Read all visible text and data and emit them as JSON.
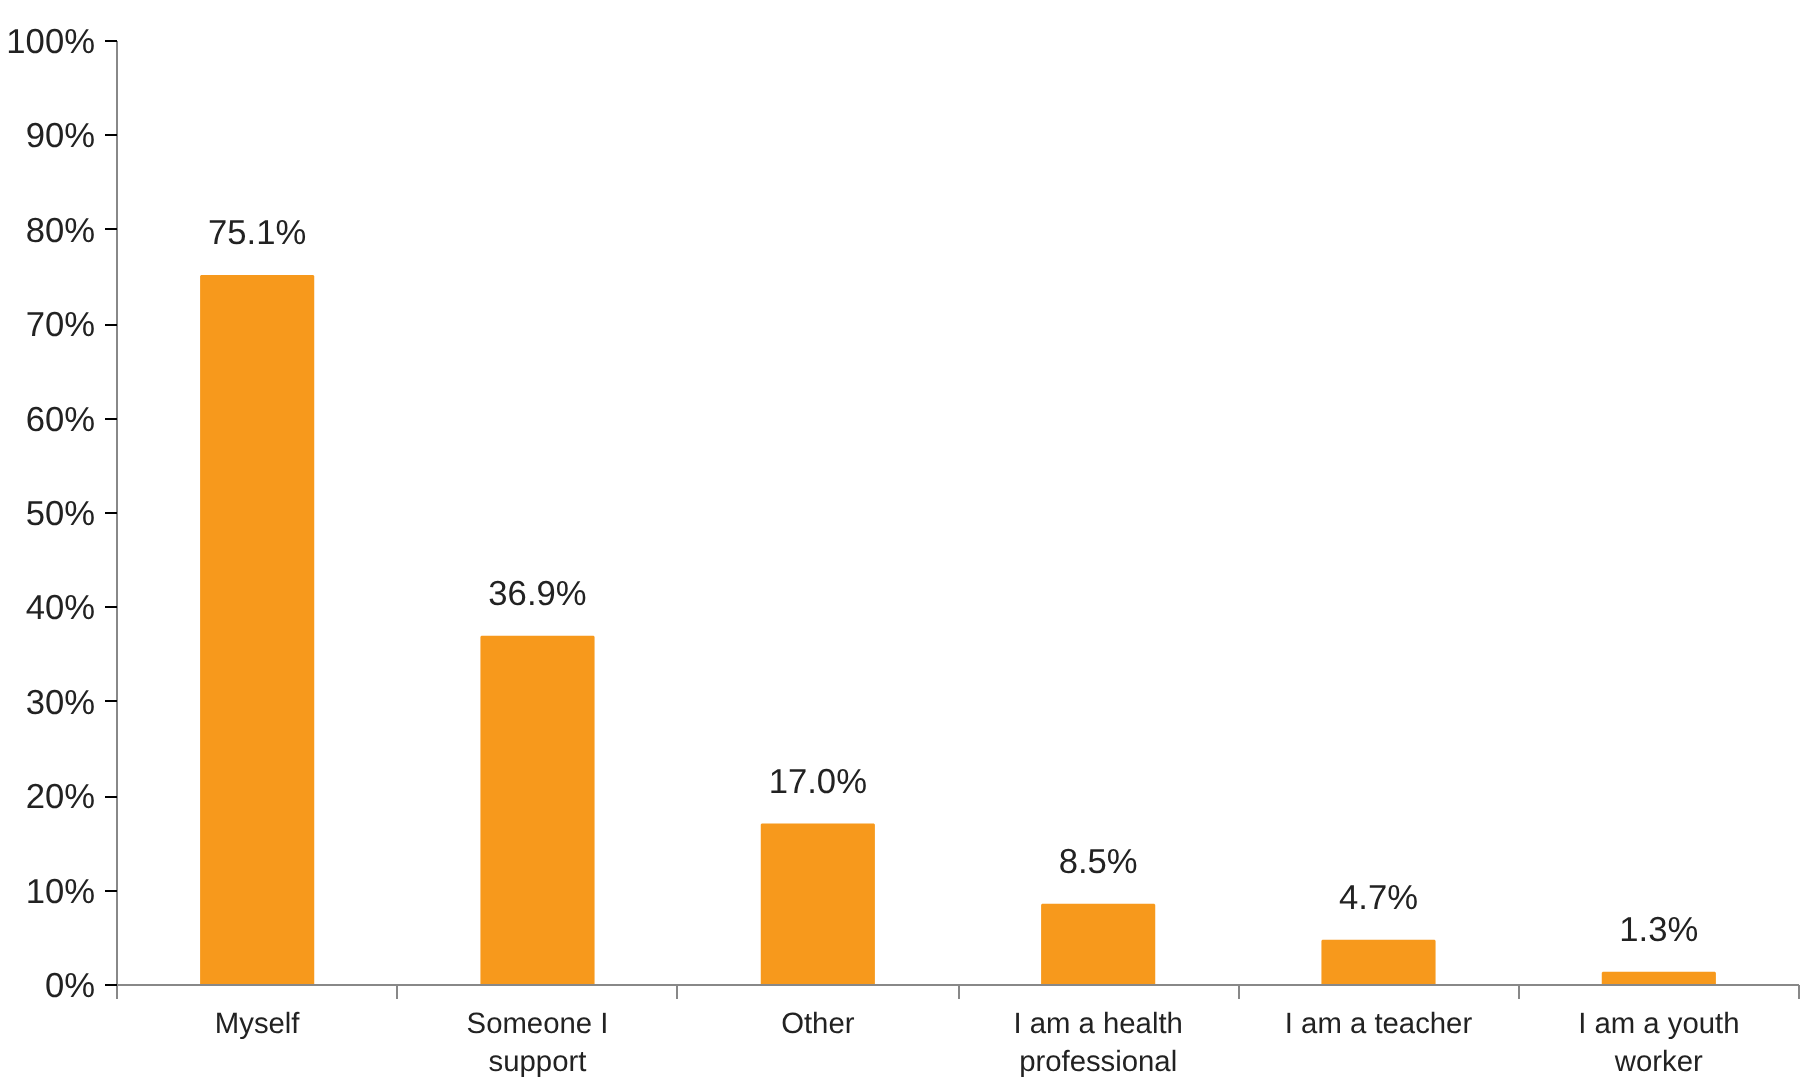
{
  "chart_data": {
    "type": "bar",
    "categories": [
      "Myself",
      "Someone I support",
      "Other",
      "I am a health professional",
      "I am a teacher",
      "I am a youth worker"
    ],
    "values": [
      75.1,
      36.9,
      17.0,
      8.5,
      4.7,
      1.3
    ],
    "value_labels": [
      "75.1%",
      "36.9%",
      "17.0%",
      "8.5%",
      "4.7%",
      "1.3%"
    ],
    "color": "#f7991c",
    "ylim": [
      0,
      100
    ],
    "yticks": [
      {
        "value": 0,
        "label": "0%"
      },
      {
        "value": 10,
        "label": "10%"
      },
      {
        "value": 20,
        "label": "20%"
      },
      {
        "value": 30,
        "label": "30%"
      },
      {
        "value": 40,
        "label": "40%"
      },
      {
        "value": 50,
        "label": "50%"
      },
      {
        "value": 60,
        "label": "60%"
      },
      {
        "value": 70,
        "label": "70%"
      },
      {
        "value": 80,
        "label": "80%"
      },
      {
        "value": 90,
        "label": "90%"
      },
      {
        "value": 100,
        "label": "100%"
      }
    ],
    "grid": false
  }
}
